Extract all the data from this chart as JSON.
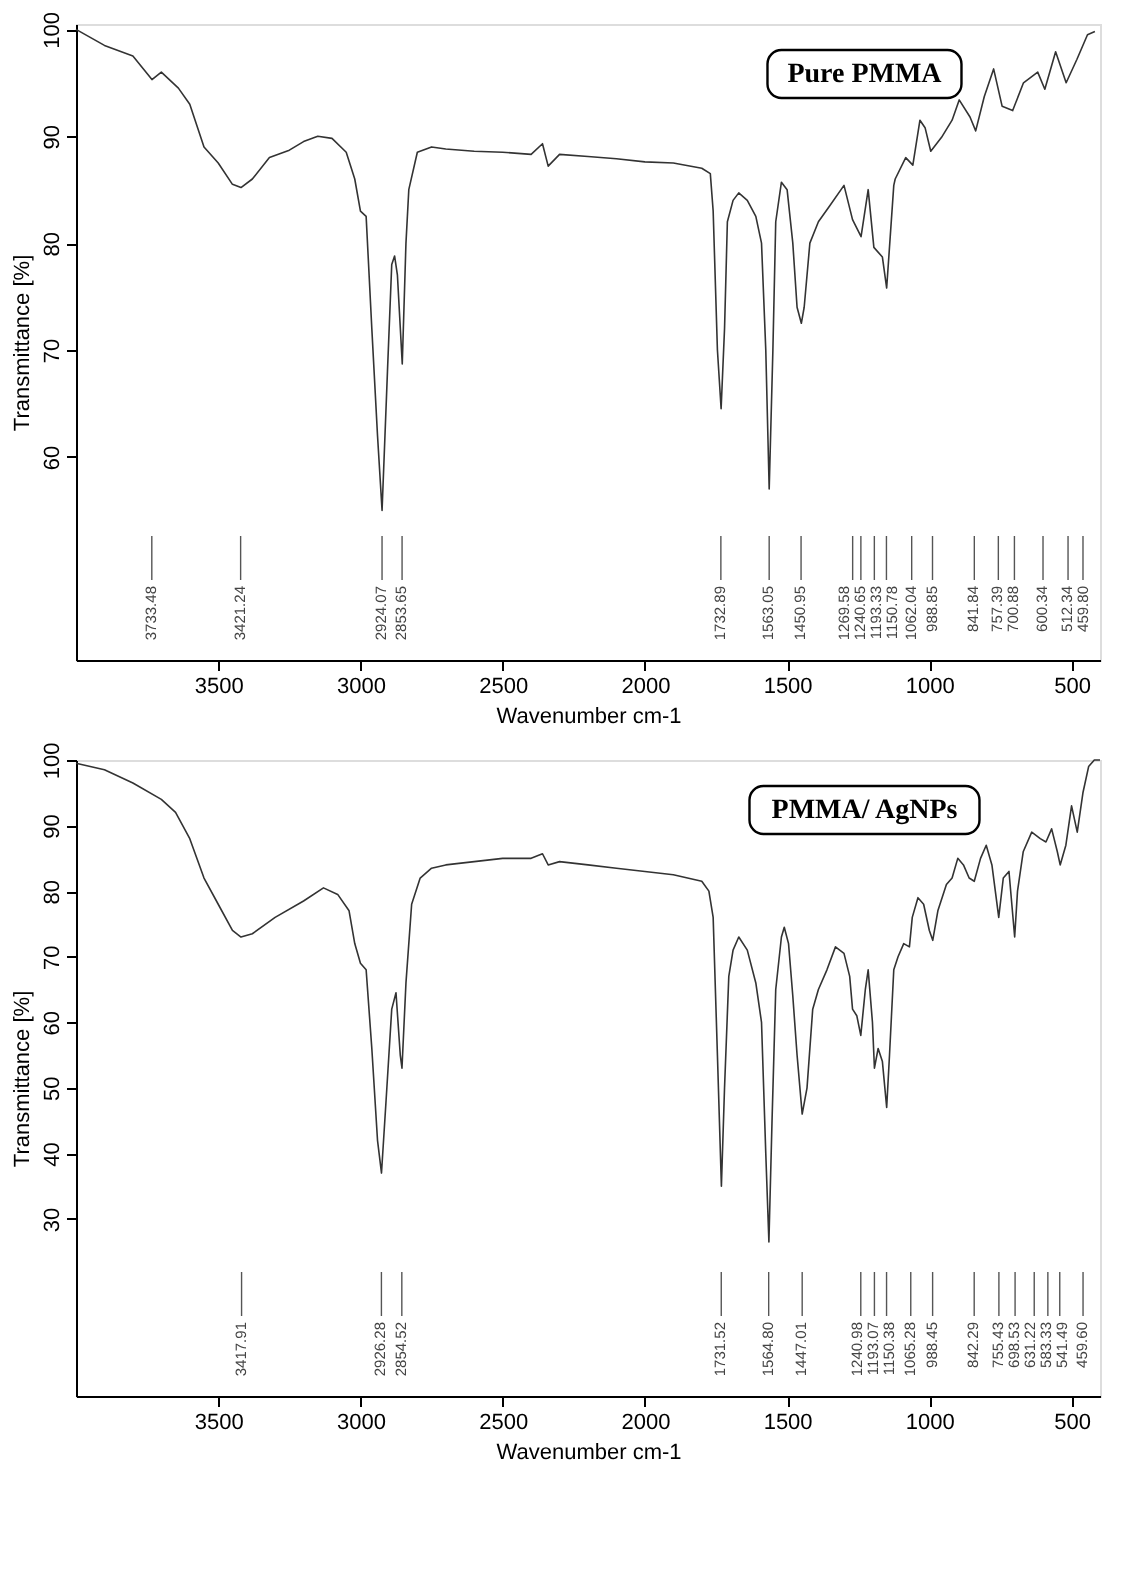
{
  "chart_data": [
    {
      "type": "line",
      "title": "Pure PMMA",
      "xlabel": "Wavenumber cm-1",
      "ylabel": "Transmittance [%]",
      "xlim": [
        4000,
        400
      ],
      "ylim": [
        41,
        100.5
      ],
      "xticks": [
        3500,
        3000,
        2500,
        2000,
        1500,
        1000,
        500
      ],
      "yticks": [
        60,
        70,
        80,
        90,
        100
      ],
      "grid": false,
      "series": [
        {
          "color": "#333333",
          "x": [
            4000,
            3900,
            3800,
            3733,
            3700,
            3640,
            3600,
            3550,
            3500,
            3450,
            3420,
            3380,
            3320,
            3250,
            3200,
            3150,
            3100,
            3050,
            3020,
            3000,
            2980,
            2960,
            2940,
            2924,
            2905,
            2890,
            2880,
            2870,
            2853,
            2840,
            2830,
            2800,
            2750,
            2700,
            2600,
            2500,
            2400,
            2360,
            2340,
            2300,
            2200,
            2100,
            2000,
            1900,
            1800,
            1770,
            1760,
            1745,
            1732,
            1720,
            1710,
            1690,
            1670,
            1640,
            1610,
            1590,
            1575,
            1563,
            1550,
            1540,
            1520,
            1500,
            1480,
            1465,
            1450,
            1440,
            1420,
            1390,
            1350,
            1300,
            1270,
            1240,
            1215,
            1195,
            1165,
            1150,
            1125,
            1120,
            1083,
            1058,
            1033,
            1015,
            995,
            957,
            920,
            895,
            857,
            837,
            807,
            774,
            744,
            707,
            669,
            619,
            594,
            556,
            519,
            481,
            444,
            418
          ],
          "values": [
            100,
            98.5,
            97.5,
            95.3,
            96,
            94.5,
            93,
            89,
            87.5,
            85.5,
            85.2,
            86,
            88,
            88.7,
            89.5,
            90,
            89.8,
            88.5,
            86,
            83,
            82.5,
            72,
            62,
            55,
            68,
            78,
            78.8,
            77,
            68.7,
            80,
            85,
            88.5,
            89,
            88.8,
            88.6,
            88.5,
            88.3,
            89.3,
            87.2,
            88.3,
            88.1,
            87.9,
            87.6,
            87.5,
            87,
            86.5,
            83,
            70,
            64.5,
            72,
            82,
            84,
            84.7,
            84,
            82.5,
            80,
            70,
            57,
            70,
            82,
            85.7,
            85,
            80,
            74,
            72.5,
            74,
            80,
            82,
            83.5,
            85.4,
            82.2,
            80.6,
            85,
            79.6,
            78.7,
            75.8,
            85.4,
            86,
            88,
            87.3,
            91.5,
            90.8,
            88.6,
            89.9,
            91.5,
            93.4,
            91.8,
            90.5,
            93.7,
            96.3,
            92.8,
            92.4,
            95,
            96,
            94.4,
            97.9,
            95,
            97.2,
            99.5,
            99.8
          ]
        }
      ],
      "ref_lines": [
        {
          "axis": "x",
          "value": 3733.48,
          "label": "3733.48"
        },
        {
          "axis": "x",
          "value": 3421.24,
          "label": "3421.24"
        },
        {
          "axis": "x",
          "value": 2924.07,
          "label": "2924.07"
        },
        {
          "axis": "x",
          "value": 2853.65,
          "label": "2853.65"
        },
        {
          "axis": "x",
          "value": 1732.89,
          "label": "1732.89"
        },
        {
          "axis": "x",
          "value": 1563.05,
          "label": "1563.05"
        },
        {
          "axis": "x",
          "value": 1450.95,
          "label": "1450.95"
        },
        {
          "axis": "x",
          "value": 1269.58,
          "label": "1269.58"
        },
        {
          "axis": "x",
          "value": 1240.65,
          "label": "1240.65"
        },
        {
          "axis": "x",
          "value": 1193.33,
          "label": "1193.33"
        },
        {
          "axis": "x",
          "value": 1150.78,
          "label": "1150.78"
        },
        {
          "axis": "x",
          "value": 1062.04,
          "label": "1062.04"
        },
        {
          "axis": "x",
          "value": 988.85,
          "label": "988.85"
        },
        {
          "axis": "x",
          "value": 841.84,
          "label": "841.84"
        },
        {
          "axis": "x",
          "value": 757.39,
          "label": "757.39"
        },
        {
          "axis": "x",
          "value": 700.88,
          "label": "700.88"
        },
        {
          "axis": "x",
          "value": 600.34,
          "label": "600.34"
        },
        {
          "axis": "x",
          "value": 512.34,
          "label": "512.34"
        },
        {
          "axis": "x",
          "value": 459.8,
          "label": "459.80"
        }
      ]
    },
    {
      "type": "line",
      "title": "PMMA/ AgNPs",
      "xlabel": "Wavenumber cm-1",
      "ylabel": "Transmittance [%]",
      "xlim": [
        4000,
        400
      ],
      "ylim": [
        3,
        100
      ],
      "xticks": [
        3500,
        3000,
        2500,
        2000,
        1500,
        1000,
        500
      ],
      "yticks": [
        30,
        40,
        50,
        60,
        70,
        80,
        90,
        100
      ],
      "grid": false,
      "series": [
        {
          "color": "#333333",
          "x": [
            4000,
            3900,
            3800,
            3700,
            3650,
            3600,
            3550,
            3500,
            3450,
            3420,
            3380,
            3300,
            3200,
            3130,
            3080,
            3040,
            3020,
            3000,
            2980,
            2960,
            2940,
            2926,
            2910,
            2890,
            2875,
            2860,
            2854,
            2840,
            2820,
            2790,
            2750,
            2700,
            2600,
            2500,
            2400,
            2360,
            2340,
            2300,
            2200,
            2100,
            2000,
            1900,
            1800,
            1775,
            1760,
            1745,
            1731,
            1720,
            1705,
            1690,
            1670,
            1640,
            1610,
            1590,
            1575,
            1564,
            1553,
            1540,
            1520,
            1510,
            1495,
            1480,
            1465,
            1447,
            1430,
            1410,
            1390,
            1360,
            1330,
            1300,
            1280,
            1270,
            1255,
            1241,
            1225,
            1215,
            1200,
            1193,
            1180,
            1165,
            1150,
            1140,
            1125,
            1110,
            1090,
            1070,
            1060,
            1040,
            1020,
            1000,
            988,
            970,
            940,
            920,
            900,
            880,
            860,
            842,
            820,
            800,
            780,
            756,
            740,
            720,
            700,
            690,
            670,
            640,
            610,
            590,
            570,
            550,
            540,
            520,
            500,
            480,
            460,
            440,
            420,
            400
          ],
          "values": [
            99.5,
            98.5,
            96.5,
            94,
            92,
            88,
            82,
            78,
            74,
            73,
            73.5,
            76,
            78.5,
            80.5,
            79.5,
            77,
            72,
            69,
            68,
            56,
            42,
            37,
            48,
            62,
            64.5,
            55,
            53,
            66,
            78,
            82,
            83.5,
            84,
            84.5,
            85,
            85,
            85.7,
            84,
            84.5,
            84,
            83.5,
            83,
            82.5,
            81.5,
            80,
            76,
            55,
            35,
            50,
            67,
            71,
            73,
            71,
            66,
            60,
            40,
            26.5,
            45,
            65,
            73,
            74.5,
            72,
            64,
            55,
            46,
            50,
            62,
            65,
            68,
            71.5,
            70.5,
            67,
            62,
            61,
            58,
            65,
            68,
            60,
            53,
            56,
            54,
            47,
            55,
            68,
            70,
            72,
            71.5,
            76,
            79,
            78,
            74,
            72.5,
            77,
            81,
            82,
            85,
            84,
            82,
            81.5,
            85,
            87,
            84,
            76,
            82,
            83,
            73,
            80,
            86,
            89,
            88,
            87.5,
            89.5,
            86,
            84,
            87,
            93,
            89,
            95,
            99,
            100,
            100
          ]
        }
      ],
      "ref_lines": [
        {
          "axis": "x",
          "value": 3417.91,
          "label": "3417.91"
        },
        {
          "axis": "x",
          "value": 2926.28,
          "label": "2926.28"
        },
        {
          "axis": "x",
          "value": 2854.52,
          "label": "2854.52"
        },
        {
          "axis": "x",
          "value": 1731.52,
          "label": "1731.52"
        },
        {
          "axis": "x",
          "value": 1564.8,
          "label": "1564.80"
        },
        {
          "axis": "x",
          "value": 1447.01,
          "label": "1447.01"
        },
        {
          "axis": "x",
          "value": 1240.98,
          "label": "1240.98"
        },
        {
          "axis": "x",
          "value": 1193.07,
          "label": "1193.07"
        },
        {
          "axis": "x",
          "value": 1150.38,
          "label": "1150.38"
        },
        {
          "axis": "x",
          "value": 1065.28,
          "label": "1065.28"
        },
        {
          "axis": "x",
          "value": 988.45,
          "label": "988.45"
        },
        {
          "axis": "x",
          "value": 842.29,
          "label": "842.29"
        },
        {
          "axis": "x",
          "value": 755.43,
          "label": "755.43"
        },
        {
          "axis": "x",
          "value": 698.53,
          "label": "698.53"
        },
        {
          "axis": "x",
          "value": 631.22,
          "label": "631.22"
        },
        {
          "axis": "x",
          "value": 583.33,
          "label": "583.33"
        },
        {
          "axis": "x",
          "value": 541.49,
          "label": "541.49"
        },
        {
          "axis": "x",
          "value": 459.6,
          "label": "459.60"
        }
      ]
    }
  ]
}
